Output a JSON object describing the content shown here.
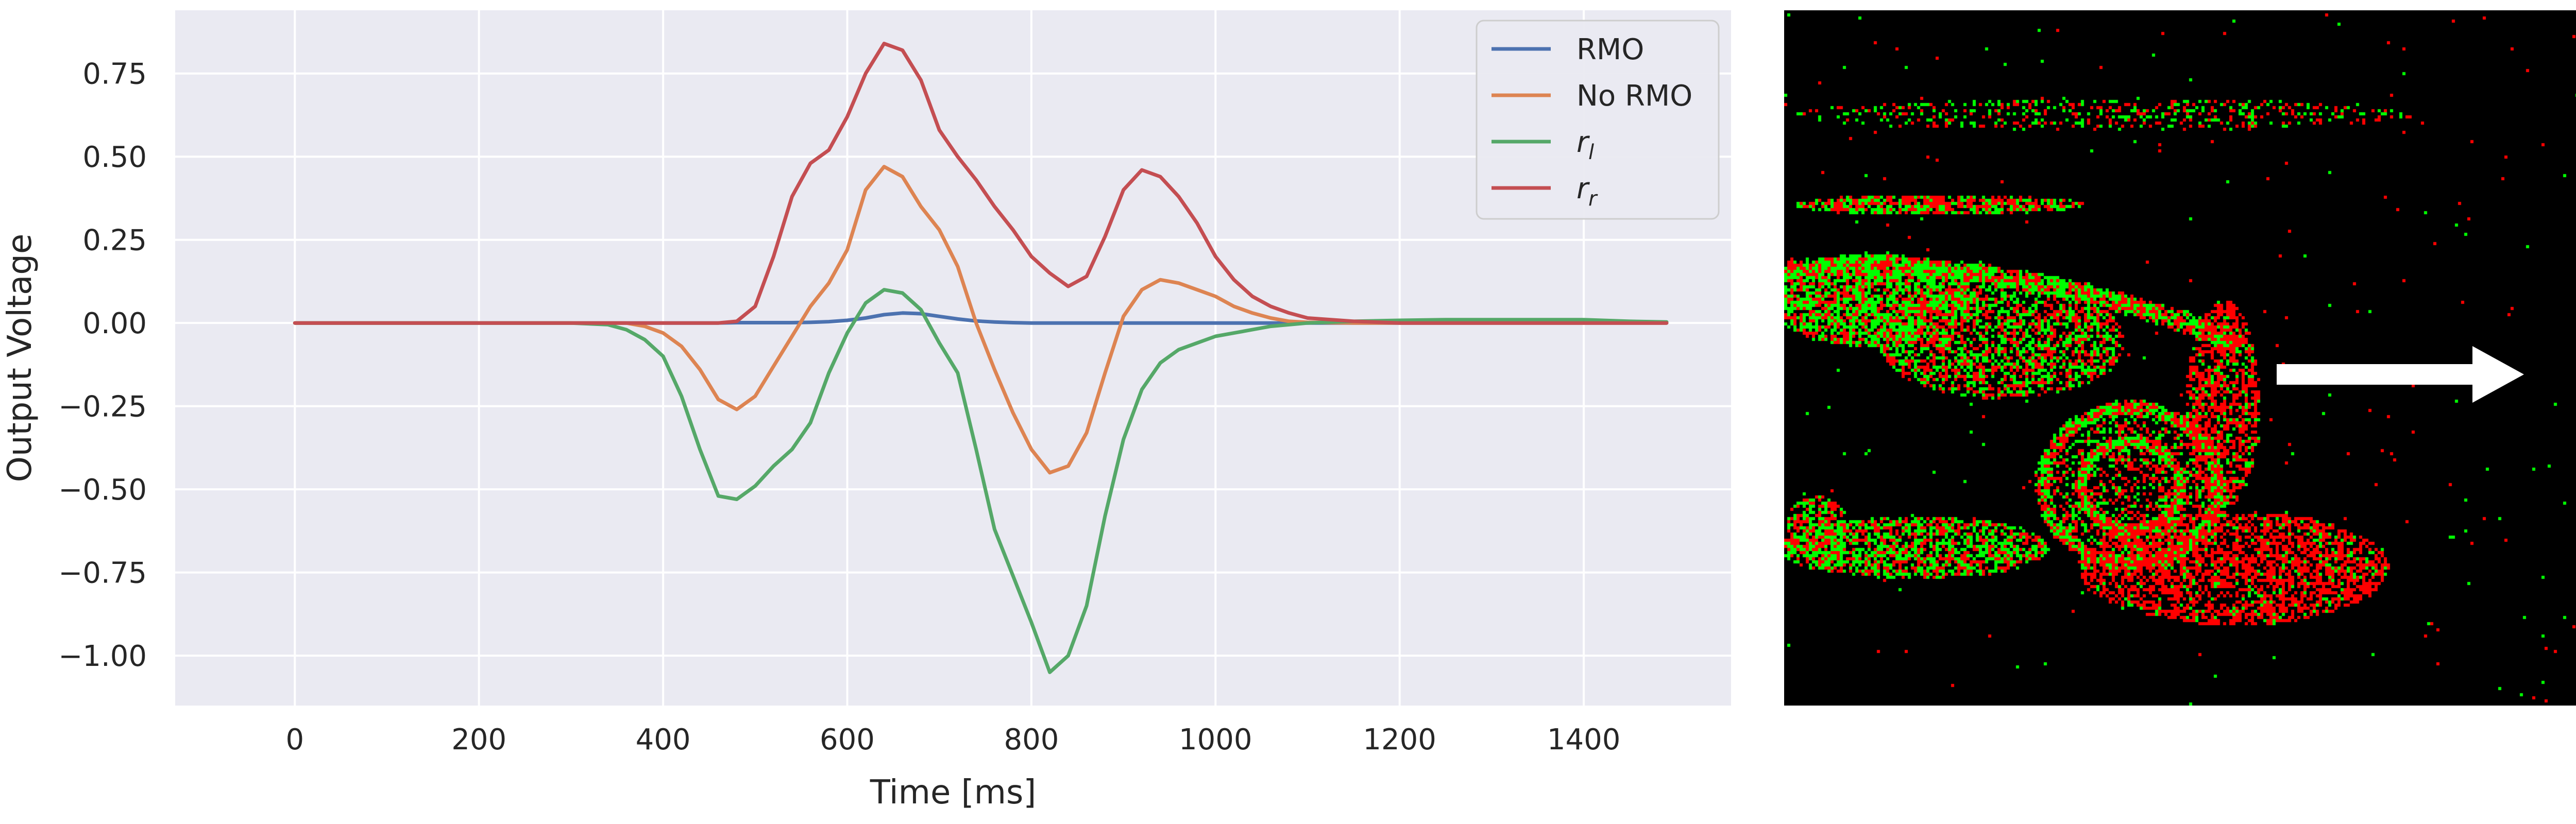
{
  "chart_data": {
    "type": "line",
    "title": "",
    "xlabel": "Time [ms]",
    "ylabel": "Output Voltage",
    "xlim": [
      -130,
      1560
    ],
    "ylim": [
      -1.15,
      0.94
    ],
    "xticks": [
      0,
      200,
      400,
      600,
      800,
      1000,
      1200,
      1400
    ],
    "yticks": [
      0.75,
      0.5,
      0.25,
      0.0,
      -0.25,
      -0.5,
      -0.75,
      -1.0
    ],
    "ytick_labels": [
      "0.75",
      "0.50",
      "0.25",
      "0.00",
      "−0.25",
      "−0.50",
      "−0.75",
      "−1.00"
    ],
    "xtick_labels": [
      "0",
      "200",
      "400",
      "600",
      "800",
      "1000",
      "1200",
      "1400"
    ],
    "grid": true,
    "legend_position": "top-right",
    "x": [
      0,
      50,
      100,
      150,
      200,
      250,
      300,
      340,
      360,
      380,
      400,
      420,
      440,
      460,
      480,
      500,
      520,
      540,
      560,
      580,
      600,
      620,
      640,
      660,
      680,
      700,
      720,
      740,
      760,
      780,
      800,
      820,
      840,
      860,
      880,
      900,
      920,
      940,
      960,
      980,
      1000,
      1020,
      1040,
      1060,
      1080,
      1100,
      1150,
      1200,
      1250,
      1300,
      1350,
      1400,
      1450,
      1490
    ],
    "series": [
      {
        "name": "RMO",
        "color": "#4c72b0",
        "values": [
          0,
          0,
          0,
          0,
          0,
          0,
          0,
          0,
          0,
          0,
          0,
          0,
          0,
          0,
          0.001,
          0.001,
          0.001,
          0.001,
          0.002,
          0.004,
          0.008,
          0.015,
          0.025,
          0.03,
          0.028,
          0.02,
          0.012,
          0.006,
          0.003,
          0.001,
          0,
          0,
          0,
          0,
          0,
          0,
          0,
          0,
          0,
          0,
          0,
          0,
          0,
          0,
          0,
          0,
          0,
          0,
          0,
          0,
          0,
          0,
          0,
          0
        ]
      },
      {
        "name": "No RMO",
        "color": "#dd8452",
        "values": [
          0,
          0,
          0,
          0,
          0,
          0,
          0,
          0,
          0,
          -0.01,
          -0.03,
          -0.07,
          -0.14,
          -0.23,
          -0.26,
          -0.22,
          -0.13,
          -0.04,
          0.05,
          0.12,
          0.22,
          0.4,
          0.47,
          0.44,
          0.35,
          0.28,
          0.17,
          0.0,
          -0.14,
          -0.27,
          -0.38,
          -0.45,
          -0.43,
          -0.33,
          -0.15,
          0.02,
          0.1,
          0.13,
          0.12,
          0.1,
          0.08,
          0.05,
          0.03,
          0.015,
          0.005,
          0.002,
          0,
          0,
          0,
          0,
          0,
          0,
          0,
          0
        ]
      },
      {
        "name": "r_l",
        "color": "#55a868",
        "values": [
          0,
          0,
          0,
          0,
          0,
          0,
          0,
          -0.005,
          -0.02,
          -0.05,
          -0.1,
          -0.22,
          -0.38,
          -0.52,
          -0.53,
          -0.49,
          -0.43,
          -0.38,
          -0.3,
          -0.15,
          -0.03,
          0.06,
          0.1,
          0.09,
          0.04,
          -0.06,
          -0.15,
          -0.38,
          -0.62,
          -0.76,
          -0.9,
          -1.05,
          -1.0,
          -0.85,
          -0.58,
          -0.35,
          -0.2,
          -0.12,
          -0.08,
          -0.06,
          -0.04,
          -0.03,
          -0.02,
          -0.01,
          -0.005,
          0,
          0.005,
          0.008,
          0.01,
          0.01,
          0.01,
          0.01,
          0.005,
          0.003
        ]
      },
      {
        "name": "r_r",
        "color": "#c44e52",
        "values": [
          0,
          0,
          0,
          0,
          0,
          0,
          0,
          0,
          0,
          0,
          0,
          0,
          0,
          0,
          0.005,
          0.05,
          0.2,
          0.38,
          0.48,
          0.52,
          0.62,
          0.75,
          0.84,
          0.82,
          0.73,
          0.58,
          0.5,
          0.43,
          0.35,
          0.28,
          0.2,
          0.15,
          0.11,
          0.14,
          0.26,
          0.4,
          0.46,
          0.44,
          0.38,
          0.3,
          0.2,
          0.13,
          0.08,
          0.05,
          0.03,
          0.015,
          0.005,
          0,
          0,
          0,
          0,
          0,
          0,
          0
        ]
      }
    ]
  },
  "legend": {
    "entries": [
      {
        "label": "RMO",
        "color": "#4c72b0"
      },
      {
        "label": "No RMO",
        "color": "#dd8452"
      },
      {
        "label": "r",
        "sub": "l",
        "color": "#55a868"
      },
      {
        "label": "r",
        "sub": "r",
        "color": "#c44e52"
      }
    ]
  },
  "event_image": {
    "background": "#000000",
    "on_color": "#00ff00",
    "off_color": "#ff0000",
    "arrow_color": "#ffffff",
    "content": "event-camera frame of a moving car with motion direction arrow"
  }
}
